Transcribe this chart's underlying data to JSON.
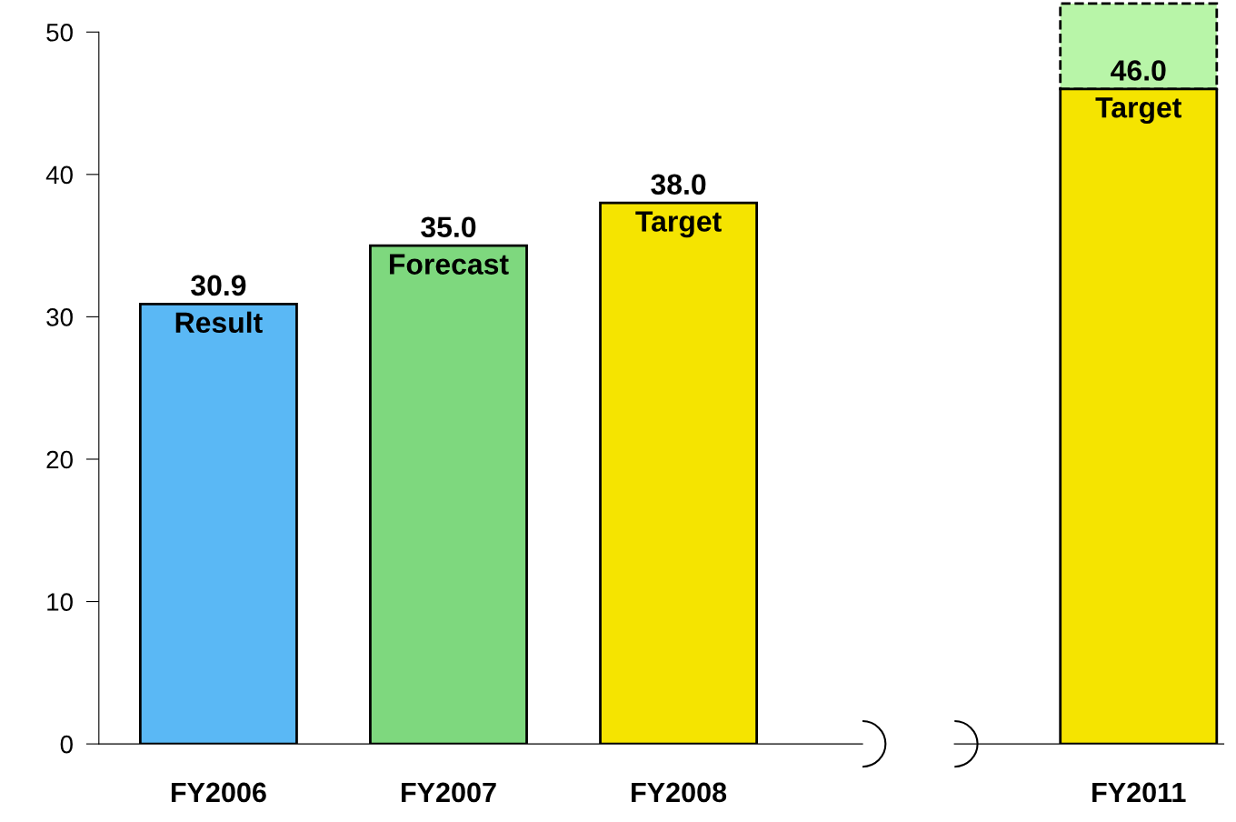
{
  "chart_data": {
    "type": "bar",
    "categories": [
      "FY2006",
      "FY2007",
      "FY2008",
      null,
      "FY2011"
    ],
    "values": [
      30.9,
      35.0,
      38.0,
      null,
      46.0
    ],
    "colors": [
      "#5ab8f5",
      "#7ed87e",
      "#f5e400",
      "#ffffff",
      "#f5e400"
    ],
    "value_labels": [
      "30.9",
      "35.0",
      "38.0",
      null,
      "46.0"
    ],
    "ylim": [
      0,
      50
    ],
    "yticks": [
      0,
      10,
      20,
      30,
      40,
      50
    ],
    "grid": false,
    "legend": false,
    "annotations": [
      "Result",
      "Forecast",
      "Target",
      "Target"
    ]
  }
}
